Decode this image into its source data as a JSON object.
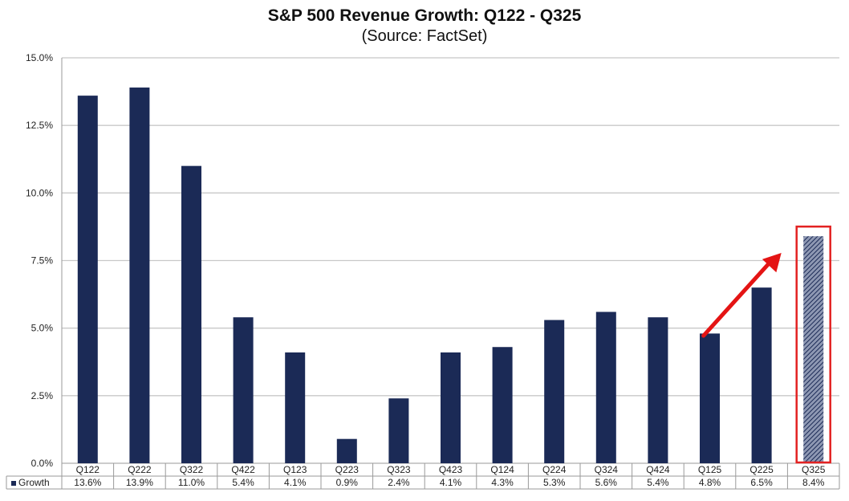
{
  "chart_data": {
    "type": "bar",
    "title": "S&P 500 Revenue Growth: Q122 - Q325",
    "subtitle": "(Source: FactSet)",
    "categories": [
      "Q122",
      "Q222",
      "Q322",
      "Q422",
      "Q123",
      "Q223",
      "Q323",
      "Q423",
      "Q124",
      "Q224",
      "Q324",
      "Q424",
      "Q125",
      "Q225",
      "Q325"
    ],
    "series": [
      {
        "name": "Growth",
        "values": [
          13.6,
          13.9,
          11.0,
          5.4,
          4.1,
          0.9,
          2.4,
          4.1,
          4.3,
          5.3,
          5.6,
          5.4,
          4.8,
          6.5,
          8.4
        ],
        "labels": [
          "13.6%",
          "13.9%",
          "11.0%",
          "5.4%",
          "4.1%",
          "0.9%",
          "2.4%",
          "4.1%",
          "4.3%",
          "5.3%",
          "5.6%",
          "5.4%",
          "4.8%",
          "6.5%",
          "8.4%"
        ]
      }
    ],
    "y_ticks": [
      "0.0%",
      "2.5%",
      "5.0%",
      "7.5%",
      "10.0%",
      "12.5%",
      "15.0%"
    ],
    "ylim": [
      0,
      15
    ],
    "grid": true,
    "legend_placement": "data-table-left",
    "highlight_category": "Q325",
    "colors": {
      "bar": "#1b2a56",
      "highlight_border": "#e32222",
      "arrow": "#e41414",
      "grid": "#c8c8c8"
    }
  }
}
